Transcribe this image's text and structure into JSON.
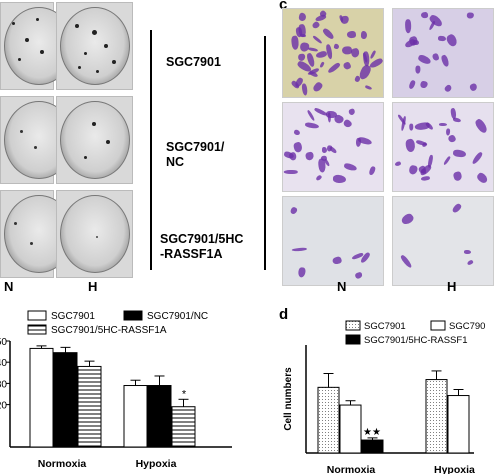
{
  "panel_a": {
    "col_labels": [
      "N",
      "H"
    ],
    "row_labels": [
      [
        "SGC7901"
      ],
      [
        "SGC7901/",
        "NC"
      ],
      [
        "SGC7901/5HC",
        "-RASSF1A"
      ]
    ]
  },
  "panel_c": {
    "letter": "c",
    "col_labels": [
      "N",
      "H"
    ]
  },
  "chart_data": [
    {
      "type": "bar",
      "ylim": [
        0,
        50
      ],
      "yticks": [
        20,
        30,
        40,
        50
      ],
      "categories": [
        "Normoxia",
        "Hypoxia"
      ],
      "legend": [
        "SGC7901",
        "SGC7901/NC",
        "SGC7901/5HC-RASSF1A"
      ],
      "series": [
        {
          "name": "SGC7901",
          "values": [
            46.5,
            29
          ],
          "errors": [
            1.2,
            2.5
          ]
        },
        {
          "name": "SGC7901/NC",
          "values": [
            44.5,
            29
          ],
          "errors": [
            2.5,
            4.5
          ]
        },
        {
          "name": "SGC7901/5HC-RASSF1A",
          "values": [
            38,
            19
          ],
          "errors": [
            2.5,
            3.5
          ]
        }
      ],
      "annotations": [
        "*"
      ]
    },
    {
      "type": "bar",
      "letter": "d",
      "ylabel": "Cell numbers",
      "ylim": [
        0,
        250
      ],
      "categories": [
        "Normoxia",
        "Hypoxia"
      ],
      "legend": [
        "SGC7901",
        "SGC790",
        "SGC7901/5HC-RASSF1"
      ],
      "series": [
        {
          "name": "SGC7901",
          "values": [
            152,
            170
          ],
          "errors": [
            32,
            20
          ]
        },
        {
          "name": "SGC790",
          "values": [
            111,
            133
          ],
          "errors": [
            10,
            14
          ]
        },
        {
          "name": "SGC7901/5HC-RASSF1",
          "values": [
            30,
            0
          ],
          "errors": [
            5,
            0
          ]
        }
      ],
      "annotations": [
        "★★"
      ]
    }
  ]
}
